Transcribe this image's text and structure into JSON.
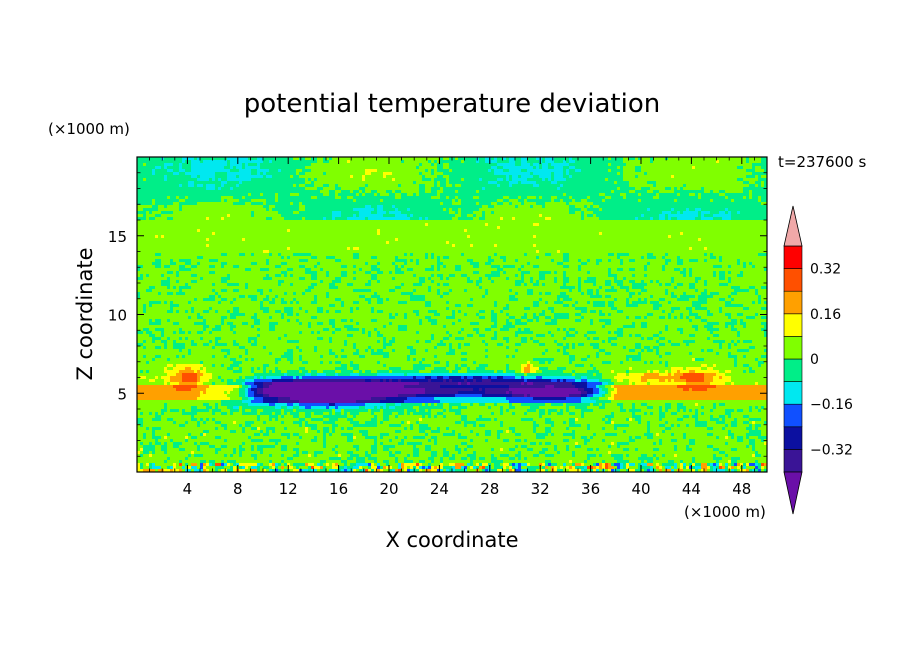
{
  "chart_data": {
    "type": "heatmap",
    "title": "potential temperature deviation",
    "xlabel": "X coordinate",
    "ylabel": "Z coordinate",
    "x_unit": "(×1000 m)",
    "y_unit": "(×1000 m)",
    "time_label": "t=237600 s",
    "xlim": [
      0,
      50
    ],
    "ylim": [
      0,
      20
    ],
    "x_ticks": [
      4,
      8,
      12,
      16,
      20,
      24,
      28,
      32,
      36,
      40,
      44,
      48
    ],
    "y_ticks": [
      5,
      10,
      15
    ],
    "colorbar": {
      "levels": [
        -0.4,
        -0.32,
        -0.24,
        -0.16,
        -0.08,
        0,
        0.08,
        0.16,
        0.24,
        0.32,
        0.4
      ],
      "labeled_levels": [
        {
          "value": 0.32,
          "label": "0.32"
        },
        {
          "value": 0.16,
          "label": "0.16"
        },
        {
          "value": 0,
          "label": "0"
        },
        {
          "value": -0.16,
          "label": "−0.16"
        },
        {
          "value": -0.32,
          "label": "−0.32"
        }
      ],
      "colors": [
        "#6a0fa8",
        "#3a1496",
        "#0c10a0",
        "#1050ff",
        "#00e8f0",
        "#00ee88",
        "#80ff00",
        "#ffff00",
        "#ffa000",
        "#ff5000",
        "#ff0000",
        "#f0a8a8"
      ],
      "extend": "both"
    },
    "field_regions": [
      {
        "level": 0.04,
        "z_min": 0,
        "z_max": 4.3,
        "description_color": "#80ff00"
      },
      {
        "level": 0.2,
        "z_min": 4.6,
        "z_max": 5.6
      },
      {
        "level": -0.2,
        "x_min": 8,
        "x_max": 38,
        "z_min": 4.5,
        "z_max": 6.3
      },
      {
        "level": -0.36,
        "x_min": 10,
        "x_max": 22,
        "z_min": 4.2,
        "z_max": 5.6
      },
      {
        "level": 0.36,
        "x": 4,
        "z": 6
      },
      {
        "level": 0.36,
        "x": 44,
        "z": 6
      },
      {
        "level": -0.04,
        "z_min": 16,
        "z_max": 20
      }
    ]
  }
}
